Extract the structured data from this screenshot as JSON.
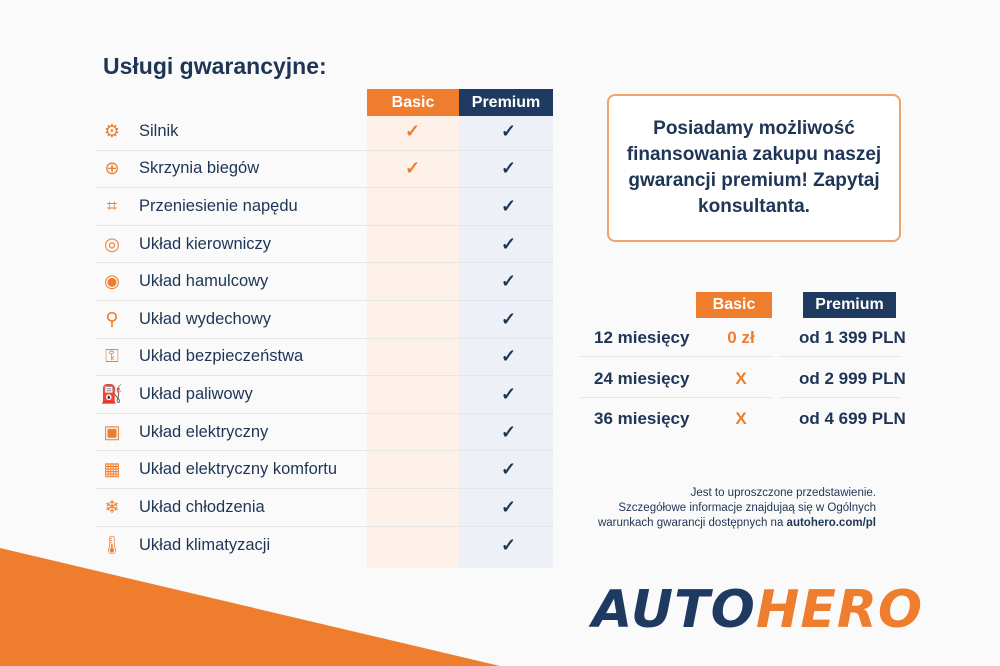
{
  "title": "Usługi gwarancyjne:",
  "colors": {
    "orange": "#ef7d2e",
    "navy": "#1e3a60"
  },
  "plans": {
    "basic": "Basic",
    "premium": "Premium"
  },
  "check": "✓",
  "services": [
    {
      "label": "Silnik",
      "icon": "engine-icon",
      "glyph": "⚙",
      "basic": true,
      "premium": true
    },
    {
      "label": "Skrzynia biegów",
      "icon": "gearbox-icon",
      "glyph": "⊕",
      "basic": true,
      "premium": true
    },
    {
      "label": "Przeniesienie napędu",
      "icon": "drivetrain-icon",
      "glyph": "⌗",
      "basic": false,
      "premium": true
    },
    {
      "label": "Układ kierowniczy",
      "icon": "steering-wheel-icon",
      "glyph": "◎",
      "basic": false,
      "premium": true
    },
    {
      "label": "Układ hamulcowy",
      "icon": "brake-icon",
      "glyph": "◉",
      "basic": false,
      "premium": true
    },
    {
      "label": "Układ wydechowy",
      "icon": "exhaust-icon",
      "glyph": "⚲",
      "basic": false,
      "premium": true
    },
    {
      "label": "Układ bezpieczeństwa",
      "icon": "safety-icon",
      "glyph": "⚿",
      "basic": false,
      "premium": true
    },
    {
      "label": "Układ paliwowy",
      "icon": "fuel-icon",
      "glyph": "⛽",
      "basic": false,
      "premium": true
    },
    {
      "label": "Układ elektryczny",
      "icon": "battery-icon",
      "glyph": "▣",
      "basic": false,
      "premium": true
    },
    {
      "label": "Układ elektryczny komfortu",
      "icon": "chip-icon",
      "glyph": "▦",
      "basic": false,
      "premium": true
    },
    {
      "label": "Układ chłodzenia",
      "icon": "snowflake-icon",
      "glyph": "❄",
      "basic": false,
      "premium": true
    },
    {
      "label": "Układ klimatyzacji",
      "icon": "thermometer-icon",
      "glyph": "🌡",
      "basic": false,
      "premium": true
    }
  ],
  "promo": "Posiadamy możliwość finansowania zakupu naszej gwarancji premium! Zapytaj konsultanta.",
  "pricing": {
    "basic": "Basic",
    "premium": "Premium",
    "rows": [
      {
        "months": "12 miesięcy",
        "basic": "0 zł",
        "premium": "od 1 399 PLN"
      },
      {
        "months": "24 miesięcy",
        "basic": "X",
        "premium": "od 2 999 PLN"
      },
      {
        "months": "36 miesięcy",
        "basic": "X",
        "premium": "od 4 699 PLN"
      }
    ]
  },
  "note": {
    "line1": "Jest to uproszczone przedstawienie.",
    "line2": "Szczegółowe informacje znajdujaą się w Ogólnych",
    "line3": "warunkach gwarancji dostępnych na ",
    "link": "autohero.com/pl"
  },
  "logo": {
    "part1": "AUTO",
    "part2": "HERO"
  }
}
